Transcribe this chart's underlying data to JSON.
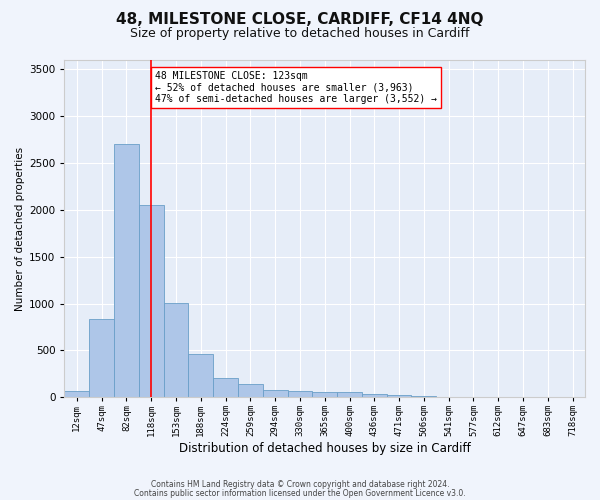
{
  "title": "48, MILESTONE CLOSE, CARDIFF, CF14 4NQ",
  "subtitle": "Size of property relative to detached houses in Cardiff",
  "xlabel": "Distribution of detached houses by size in Cardiff",
  "ylabel": "Number of detached properties",
  "categories": [
    "12sqm",
    "47sqm",
    "82sqm",
    "118sqm",
    "153sqm",
    "188sqm",
    "224sqm",
    "259sqm",
    "294sqm",
    "330sqm",
    "365sqm",
    "400sqm",
    "436sqm",
    "471sqm",
    "506sqm",
    "541sqm",
    "577sqm",
    "612sqm",
    "647sqm",
    "683sqm",
    "718sqm"
  ],
  "values": [
    70,
    840,
    2700,
    2050,
    1010,
    460,
    210,
    140,
    80,
    65,
    55,
    55,
    30,
    25,
    15,
    8,
    5,
    3,
    2,
    1,
    1
  ],
  "bar_color": "#aec6e8",
  "bar_edge_color": "#6a9fc8",
  "red_line_index": 3,
  "ylim": [
    0,
    3600
  ],
  "yticks": [
    0,
    500,
    1000,
    1500,
    2000,
    2500,
    3000,
    3500
  ],
  "annotation_text": "48 MILESTONE CLOSE: 123sqm\n← 52% of detached houses are smaller (3,963)\n47% of semi-detached houses are larger (3,552) →",
  "footnote1": "Contains HM Land Registry data © Crown copyright and database right 2024.",
  "footnote2": "Contains public sector information licensed under the Open Government Licence v3.0.",
  "background_color": "#f0f4fc",
  "plot_bg_color": "#e6edf8",
  "grid_color": "#ffffff",
  "title_fontsize": 11,
  "subtitle_fontsize": 9
}
